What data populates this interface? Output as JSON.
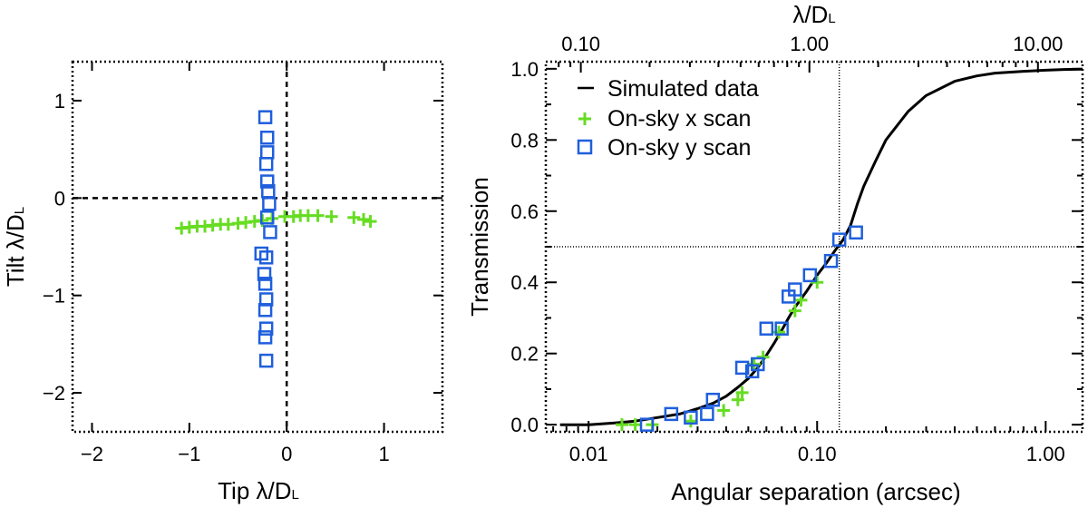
{
  "chart_data": [
    {
      "type": "scatter",
      "xlabel": "Tip λ/D",
      "xlabel_sub": "L",
      "ylabel": "Tilt λ/D",
      "ylabel_sub": "L",
      "xlim": [
        -2.2,
        1.6
      ],
      "ylim": [
        -2.4,
        1.4
      ],
      "xticks": [
        -2,
        -1,
        0,
        1
      ],
      "yticks": [
        -2,
        -1,
        0,
        1
      ],
      "xtick_labels": [
        "−2",
        "−1",
        "0",
        "1"
      ],
      "ytick_labels": [
        "−2",
        "−1",
        "0",
        "1"
      ],
      "reference_lines": {
        "x": 0,
        "y": 0
      },
      "series": [
        {
          "name": "On-sky x scan",
          "marker": "plus",
          "color": "#66dd22",
          "points": [
            [
              -1.08,
              -0.31
            ],
            [
              -1.0,
              -0.3
            ],
            [
              -0.92,
              -0.29
            ],
            [
              -0.84,
              -0.29
            ],
            [
              -0.76,
              -0.28
            ],
            [
              -0.68,
              -0.27
            ],
            [
              -0.6,
              -0.27
            ],
            [
              -0.5,
              -0.26
            ],
            [
              -0.42,
              -0.25
            ],
            [
              -0.33,
              -0.24
            ],
            [
              -0.25,
              -0.23
            ],
            [
              -0.15,
              -0.21
            ],
            [
              -0.02,
              -0.19
            ],
            [
              0.07,
              -0.19
            ],
            [
              0.14,
              -0.18
            ],
            [
              0.22,
              -0.18
            ],
            [
              0.32,
              -0.18
            ],
            [
              0.46,
              -0.19
            ],
            [
              0.69,
              -0.2
            ],
            [
              0.79,
              -0.22
            ],
            [
              0.86,
              -0.24
            ]
          ]
        },
        {
          "name": "On-sky y scan",
          "marker": "square",
          "color": "#1f5fdc",
          "points": [
            [
              -0.22,
              0.83
            ],
            [
              -0.2,
              0.62
            ],
            [
              -0.2,
              0.47
            ],
            [
              -0.21,
              0.35
            ],
            [
              -0.2,
              0.17
            ],
            [
              -0.19,
              0.07
            ],
            [
              -0.18,
              -0.06
            ],
            [
              -0.2,
              -0.2
            ],
            [
              -0.17,
              -0.35
            ],
            [
              -0.26,
              -0.57
            ],
            [
              -0.21,
              -0.61
            ],
            [
              -0.23,
              -0.78
            ],
            [
              -0.22,
              -0.88
            ],
            [
              -0.21,
              -1.04
            ],
            [
              -0.22,
              -1.15
            ],
            [
              -0.21,
              -1.34
            ],
            [
              -0.22,
              -1.43
            ],
            [
              -0.21,
              -1.67
            ]
          ]
        }
      ]
    },
    {
      "type": "line",
      "xscale": "log",
      "xlabel": "Angular separation (arcsec)",
      "ylabel": "Transmission",
      "top_xlabel": "λ/D",
      "top_xlabel_sub": "L",
      "xlim": [
        0.0065,
        1.45
      ],
      "ylim": [
        -0.02,
        1.02
      ],
      "xticks": [
        0.01,
        0.1,
        1.0
      ],
      "xtick_labels": [
        "0.01",
        "0.10",
        "1.00"
      ],
      "top_xticks": [
        0.1,
        1.0,
        10.0
      ],
      "top_xtick_labels": [
        "0.10",
        "1.00",
        "10.00"
      ],
      "top_axis_conversion": "1 λ/D = 0.0925 arcsec",
      "yticks": [
        0.0,
        0.2,
        0.4,
        0.6,
        0.8,
        1.0
      ],
      "ytick_labels": [
        "0.0",
        "0.2",
        "0.4",
        "0.6",
        "0.8",
        "1.0"
      ],
      "reference_lines": {
        "x": 0.125,
        "y": 0.5
      },
      "legend_location": "top-left",
      "series": [
        {
          "name": "Simulated data",
          "marker": "line",
          "color": "#000000",
          "x": [
            0.0075,
            0.01,
            0.013,
            0.016,
            0.02,
            0.025,
            0.03,
            0.035,
            0.04,
            0.045,
            0.05,
            0.055,
            0.06,
            0.065,
            0.07,
            0.075,
            0.08,
            0.09,
            0.1,
            0.11,
            0.12,
            0.13,
            0.14,
            0.15,
            0.16,
            0.18,
            0.2,
            0.25,
            0.3,
            0.4,
            0.5,
            0.6,
            0.8,
            1.0,
            1.2,
            1.45
          ],
          "y": [
            0.0,
            0.0,
            0.005,
            0.01,
            0.02,
            0.03,
            0.045,
            0.06,
            0.08,
            0.105,
            0.13,
            0.16,
            0.195,
            0.23,
            0.265,
            0.3,
            0.33,
            0.375,
            0.42,
            0.455,
            0.49,
            0.52,
            0.56,
            0.62,
            0.67,
            0.74,
            0.8,
            0.88,
            0.925,
            0.965,
            0.98,
            0.988,
            0.993,
            0.996,
            0.998,
            0.999
          ]
        },
        {
          "name": "On-sky x scan",
          "marker": "plus",
          "color": "#66dd22",
          "x": [
            0.014,
            0.016,
            0.019,
            0.028,
            0.039,
            0.045,
            0.047,
            0.053,
            0.058,
            0.068,
            0.08,
            0.085,
            0.1
          ],
          "y": [
            0.0,
            0.0,
            0.0,
            0.01,
            0.04,
            0.07,
            0.09,
            0.17,
            0.19,
            0.26,
            0.32,
            0.35,
            0.4
          ]
        },
        {
          "name": "On-sky y scan",
          "marker": "square",
          "color": "#1f5fdc",
          "x": [
            0.018,
            0.023,
            0.028,
            0.033,
            0.035,
            0.047,
            0.052,
            0.055,
            0.06,
            0.07,
            0.075,
            0.08,
            0.093,
            0.115,
            0.125,
            0.148
          ],
          "y": [
            0.0,
            0.03,
            0.02,
            0.03,
            0.07,
            0.16,
            0.15,
            0.17,
            0.27,
            0.27,
            0.36,
            0.38,
            0.42,
            0.46,
            0.52,
            0.54
          ]
        }
      ]
    }
  ]
}
